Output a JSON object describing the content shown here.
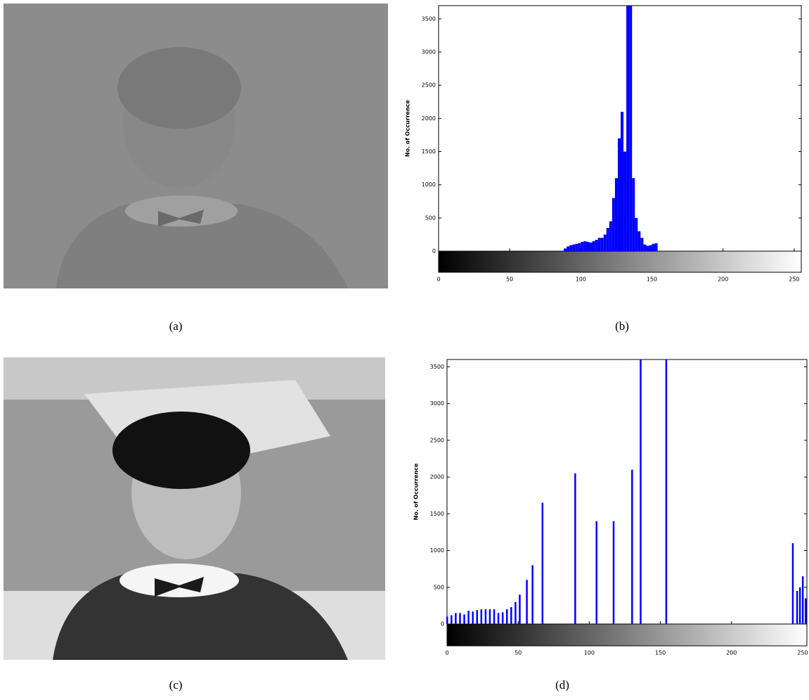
{
  "captions": [
    "(a)",
    "(b)",
    "(c)",
    "(d)"
  ],
  "chart_data": [
    {
      "type": "histogram",
      "ylabel": "No. of Occurrence",
      "color": "#0000ff",
      "bins": [
        86,
        88,
        90,
        92,
        94,
        96,
        98,
        100,
        102,
        104,
        106,
        108,
        110,
        112,
        114,
        116,
        118,
        120,
        122,
        124,
        126,
        128,
        130,
        132,
        134,
        136,
        138,
        140,
        142,
        144,
        146,
        148,
        150,
        152,
        154
      ],
      "values": [
        0,
        40,
        70,
        90,
        100,
        110,
        120,
        140,
        150,
        140,
        130,
        150,
        170,
        200,
        200,
        250,
        350,
        450,
        800,
        1100,
        1700,
        2100,
        1500,
        3700,
        3700,
        1100,
        500,
        300,
        200,
        100,
        80,
        90,
        110,
        120
      ],
      "xlim": [
        0,
        255
      ],
      "ylim": [
        0,
        3700
      ],
      "xticks": [
        0,
        50,
        100,
        150,
        200,
        250
      ],
      "yticks": [
        0,
        500,
        1000,
        1500,
        2000,
        2500,
        3000,
        3500
      ]
    },
    {
      "type": "bar",
      "ylabel": "No. of Occurrence",
      "color": "#0000ff",
      "x": [
        0,
        3,
        6,
        9,
        12,
        15,
        18,
        21,
        24,
        27,
        30,
        33,
        36,
        39,
        42,
        45,
        48,
        51,
        56,
        60,
        67,
        90,
        105,
        117,
        130,
        136,
        154,
        243,
        246,
        248,
        250,
        252
      ],
      "values": [
        100,
        120,
        150,
        150,
        130,
        180,
        170,
        190,
        200,
        200,
        200,
        200,
        150,
        160,
        200,
        230,
        300,
        400,
        600,
        800,
        1650,
        2050,
        1400,
        1400,
        2100,
        3600,
        3600,
        1100,
        450,
        500,
        650,
        350
      ],
      "xlim": [
        0,
        253
      ],
      "ylim": [
        0,
        3600
      ],
      "xticks": [
        0,
        50,
        100,
        150,
        200,
        250
      ],
      "yticks": [
        0,
        500,
        1000,
        1500,
        2000,
        2500,
        3000,
        3500
      ]
    }
  ]
}
